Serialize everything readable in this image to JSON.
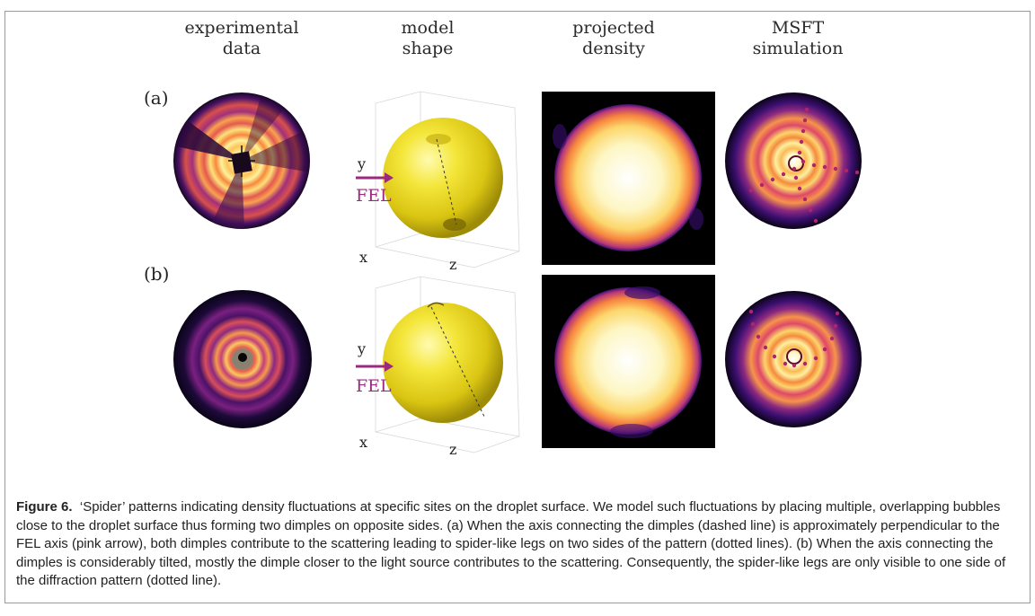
{
  "columns": {
    "experimental": [
      "experimental",
      "data"
    ],
    "model": [
      "model",
      "shape"
    ],
    "projected": [
      "projected",
      "density"
    ],
    "msft": [
      "MSFT",
      "simulation"
    ]
  },
  "rows": {
    "a": "(a)",
    "b": "(b)"
  },
  "axes": {
    "x": "x",
    "y": "y",
    "z": "z",
    "fel": "FEL"
  },
  "caption": {
    "label": "Figure 6.",
    "text": "‘Spider’ patterns indicating density fluctuations at specific sites on the droplet surface. We model such fluctuations by placing multiple, overlapping bubbles close to the droplet surface thus forming two dimples on opposite sides. (a) When the axis connecting the dimples (dashed line) is approximately perpendicular to the FEL axis (pink arrow), both dimples contribute to the scattering leading to spider-like legs on two sides of the pattern (dotted lines). (b) When the axis connecting the dimples is considerably tilted, mostly the dimple closer to the light source contributes to the scattering. Consequently, the spider-like legs are only visible to one side of the diffraction pattern (dotted line)."
  },
  "colors": {
    "colormap": [
      "#000000",
      "#3b0f70",
      "#8c2981",
      "#de4968",
      "#fe9f6d",
      "#fcfdbf",
      "#ffffff"
    ],
    "fel_arrow": "#9b2a7f",
    "sphere": "#e8d81a"
  }
}
